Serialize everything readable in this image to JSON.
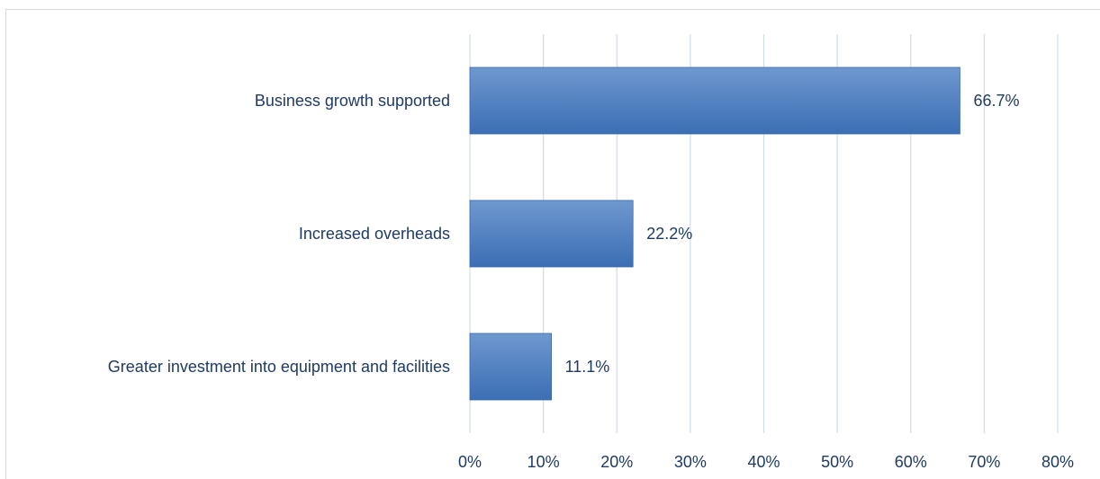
{
  "chart_data": {
    "type": "bar",
    "orientation": "horizontal",
    "title": "",
    "xlabel": "",
    "ylabel": "",
    "categories": [
      "Business growth supported",
      "Increased overheads",
      "Greater investment into equipment and facilities"
    ],
    "values": [
      66.7,
      22.2,
      11.1
    ],
    "data_labels": [
      "66.7%",
      "22.2%",
      "11.1%"
    ],
    "xlim": [
      0,
      80
    ],
    "x_ticks": [
      0,
      10,
      20,
      30,
      40,
      50,
      60,
      70,
      80
    ],
    "x_tick_labels": [
      "0%",
      "10%",
      "20%",
      "30%",
      "40%",
      "50%",
      "60%",
      "70%",
      "80%"
    ],
    "grid": true,
    "legend": "none",
    "colors": {
      "bar_top": "#6f98cf",
      "bar_bottom": "#3b6eb4",
      "bar_edge": "#3a6aad",
      "grid": "#cfdcea",
      "text": "#1f3b63"
    }
  }
}
